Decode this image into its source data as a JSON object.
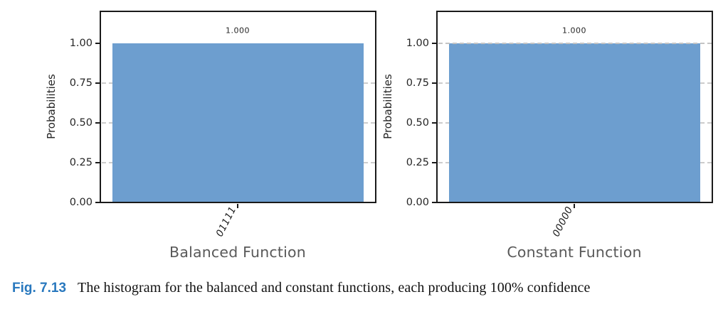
{
  "figure": {
    "caption_label": "Fig. 7.13",
    "caption_text": "The histogram for the balanced and constant functions, each producing 100% confidence",
    "caption_label_color": "#2878BE"
  },
  "chart_data": [
    {
      "type": "bar",
      "title": "",
      "xlabel": "Balanced Function",
      "ylabel": "Probabilities",
      "categories": [
        "01111"
      ],
      "values": [
        1.0
      ],
      "bar_labels": [
        "1.000"
      ],
      "ylim": [
        0,
        1.2
      ],
      "yticks": [
        0.0,
        0.25,
        0.5,
        0.75,
        1.0
      ],
      "ytick_labels": [
        "0.00",
        "0.25",
        "0.50",
        "0.75",
        "1.00"
      ],
      "grid": "horizontal dashed at 0.25, 0.50, 0.75",
      "legend": "none",
      "bar_color": "#6D9ECF",
      "xtick_rotation_deg": 63,
      "xtick_style": "italic"
    },
    {
      "type": "bar",
      "title": "",
      "xlabel": "Constant Function",
      "ylabel": "Probabilities",
      "categories": [
        "00000"
      ],
      "values": [
        1.0
      ],
      "bar_labels": [
        "1.000"
      ],
      "ylim": [
        0,
        1.2
      ],
      "yticks": [
        0.0,
        0.25,
        0.5,
        0.75,
        1.0
      ],
      "ytick_labels": [
        "0.00",
        "0.25",
        "0.50",
        "0.75",
        "1.00"
      ],
      "grid": "horizontal dashed at 0.25, 0.50, 0.75, 1.00",
      "legend": "none",
      "bar_color": "#6D9ECF",
      "xtick_rotation_deg": 63,
      "xtick_style": "italic"
    }
  ]
}
